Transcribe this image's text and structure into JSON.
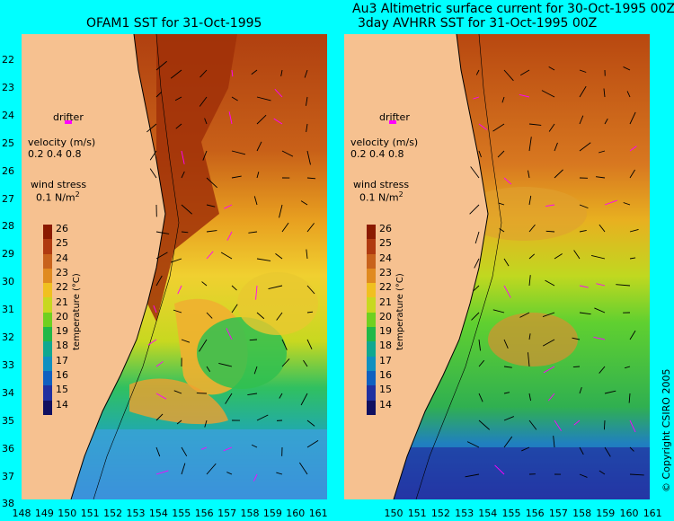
{
  "titles": {
    "left": "OFAM1 SST for 31-Oct-1995",
    "right_line1": "Au3 Altimetric surface current for 30-Oct-1995 00Z",
    "right_line2": "3day AVHRR SST for 31-Oct-1995 00Z"
  },
  "y_ticks": [
    "22",
    "23",
    "24",
    "25",
    "26",
    "27",
    "28",
    "29",
    "30",
    "31",
    "32",
    "33",
    "34",
    "35",
    "36",
    "37",
    "38"
  ],
  "x_ticks_left": [
    "148",
    "149",
    "150",
    "151",
    "152",
    "153",
    "154",
    "155",
    "156",
    "157",
    "158",
    "159",
    "160",
    "161"
  ],
  "x_ticks_right": [
    "150",
    "151",
    "152",
    "153",
    "154",
    "155",
    "156",
    "157",
    "158",
    "159",
    "160",
    "161"
  ],
  "legend": {
    "drifter": "drifter",
    "velocity": "velocity (m/s)",
    "velocity_values": "0.2 0.4 0.8",
    "wind_stress": "wind stress",
    "wind_value": "0.1 N/m",
    "wind_exp": "2"
  },
  "colorbar": {
    "ticks": [
      "26",
      "25",
      "24",
      "23",
      "22",
      "21",
      "20",
      "19",
      "18",
      "17",
      "16",
      "15",
      "14"
    ],
    "title": "temperature (°C)",
    "colors": [
      "#8b1a00",
      "#b03a10",
      "#c8621c",
      "#e08a20",
      "#f0c020",
      "#c8d820",
      "#70d020",
      "#20b848",
      "#10a890",
      "#1090c0",
      "#1060c0",
      "#2030a0",
      "#101060"
    ]
  },
  "colors": {
    "land": "#f6c190",
    "background": "#00ffff"
  },
  "copyright": "© Copyright CSIRO 2005"
}
